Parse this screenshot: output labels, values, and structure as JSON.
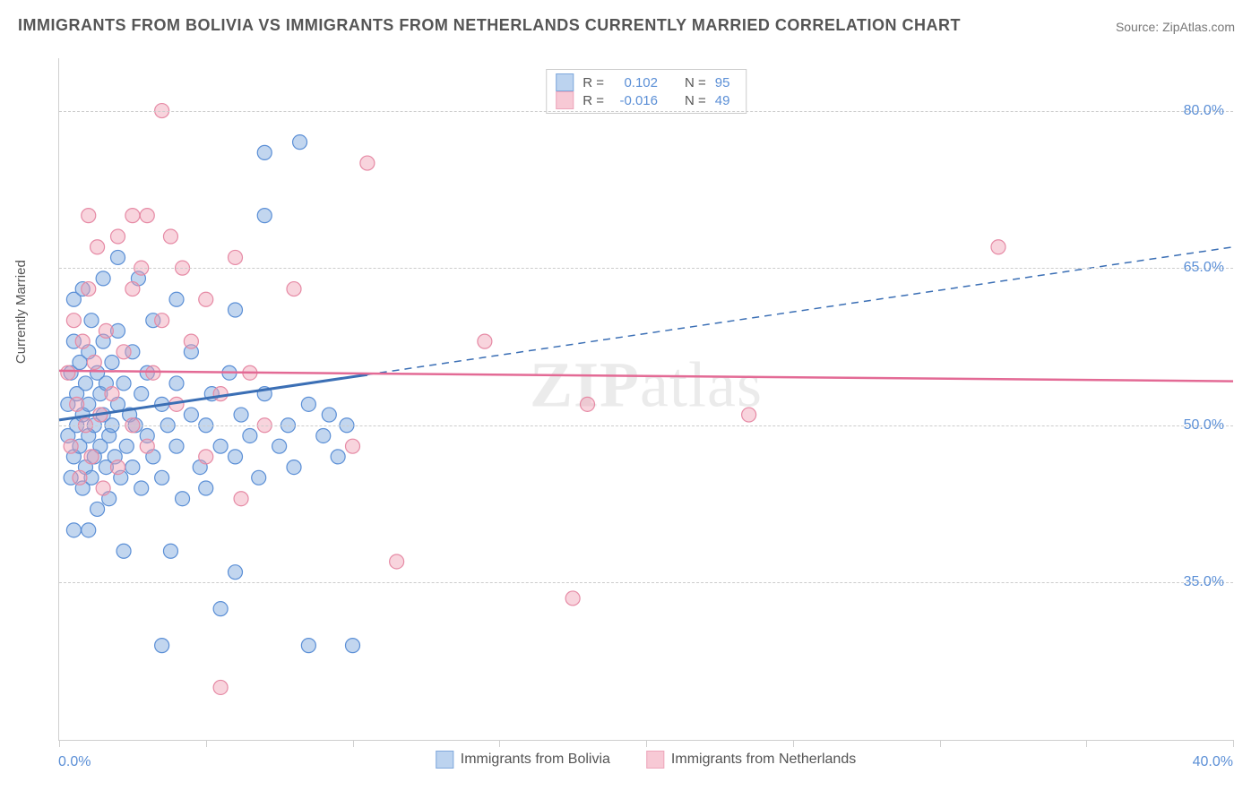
{
  "title": "IMMIGRANTS FROM BOLIVIA VS IMMIGRANTS FROM NETHERLANDS CURRENTLY MARRIED CORRELATION CHART",
  "source": "Source: ZipAtlas.com",
  "ylabel": "Currently Married",
  "watermark": "ZIPatlas",
  "chart": {
    "type": "scatter",
    "xlim": [
      0,
      40
    ],
    "ylim": [
      20,
      85
    ],
    "x_tick_labels": {
      "min": "0.0%",
      "max": "40.0%"
    },
    "x_ticks": [
      0,
      5,
      10,
      15,
      20,
      25,
      30,
      35,
      40
    ],
    "y_grid": [
      35,
      50,
      65,
      80
    ],
    "y_tick_labels": [
      "35.0%",
      "50.0%",
      "65.0%",
      "80.0%"
    ],
    "background_color": "#ffffff",
    "grid_color": "#cccccc",
    "axis_color": "#cfcfcf",
    "marker_radius": 8,
    "series": [
      {
        "name": "Immigrants from Bolivia",
        "color_fill": "rgba(120,165,220,0.45)",
        "color_stroke": "#5b8fd6",
        "swatch_fill": "#bcd3ef",
        "swatch_stroke": "#7fa8dc",
        "R": "0.102",
        "N": "95",
        "regression": {
          "y_at_xmin": 50.5,
          "y_at_xmax": 67.0,
          "solid_until_x": 10.5
        },
        "points": [
          [
            0.3,
            49
          ],
          [
            0.3,
            52
          ],
          [
            0.4,
            45
          ],
          [
            0.4,
            55
          ],
          [
            0.5,
            58
          ],
          [
            0.5,
            47
          ],
          [
            0.5,
            62
          ],
          [
            0.6,
            50
          ],
          [
            0.6,
            53
          ],
          [
            0.7,
            48
          ],
          [
            0.7,
            56
          ],
          [
            0.8,
            44
          ],
          [
            0.8,
            51
          ],
          [
            0.8,
            63
          ],
          [
            0.9,
            46
          ],
          [
            0.9,
            54
          ],
          [
            1.0,
            49
          ],
          [
            1.0,
            57
          ],
          [
            1.0,
            52
          ],
          [
            1.1,
            60
          ],
          [
            1.1,
            45
          ],
          [
            1.2,
            50
          ],
          [
            1.2,
            47
          ],
          [
            1.3,
            55
          ],
          [
            1.3,
            42
          ],
          [
            1.4,
            53
          ],
          [
            1.4,
            48
          ],
          [
            1.5,
            58
          ],
          [
            1.5,
            51
          ],
          [
            1.5,
            64
          ],
          [
            1.6,
            46
          ],
          [
            1.6,
            54
          ],
          [
            1.7,
            49
          ],
          [
            1.7,
            43
          ],
          [
            1.8,
            56
          ],
          [
            1.8,
            50
          ],
          [
            1.9,
            47
          ],
          [
            2.0,
            52
          ],
          [
            2.0,
            59
          ],
          [
            2.1,
            45
          ],
          [
            2.2,
            54
          ],
          [
            2.3,
            48
          ],
          [
            2.4,
            51
          ],
          [
            2.5,
            46
          ],
          [
            2.5,
            57
          ],
          [
            2.6,
            50
          ],
          [
            2.8,
            44
          ],
          [
            2.8,
            53
          ],
          [
            3.0,
            49
          ],
          [
            3.0,
            55
          ],
          [
            3.2,
            47
          ],
          [
            3.2,
            60
          ],
          [
            3.5,
            52
          ],
          [
            3.5,
            45
          ],
          [
            3.7,
            50
          ],
          [
            3.8,
            38
          ],
          [
            4.0,
            48
          ],
          [
            4.0,
            54
          ],
          [
            4.2,
            43
          ],
          [
            4.5,
            51
          ],
          [
            4.5,
            57
          ],
          [
            4.8,
            46
          ],
          [
            5.0,
            50
          ],
          [
            5.0,
            44
          ],
          [
            5.2,
            53
          ],
          [
            5.5,
            48
          ],
          [
            5.5,
            32.5
          ],
          [
            5.8,
            55
          ],
          [
            6.0,
            47
          ],
          [
            6.0,
            61
          ],
          [
            6.2,
            51
          ],
          [
            6.5,
            49
          ],
          [
            6.8,
            45
          ],
          [
            7.0,
            76
          ],
          [
            7.0,
            53
          ],
          [
            7.0,
            70
          ],
          [
            7.5,
            48
          ],
          [
            7.8,
            50
          ],
          [
            8.0,
            46
          ],
          [
            8.2,
            77
          ],
          [
            8.5,
            52
          ],
          [
            8.5,
            29
          ],
          [
            9.0,
            49
          ],
          [
            9.2,
            51
          ],
          [
            9.5,
            47
          ],
          [
            9.8,
            50
          ],
          [
            10.0,
            29
          ],
          [
            2.0,
            66
          ],
          [
            3.5,
            29
          ],
          [
            1.0,
            40
          ],
          [
            2.2,
            38
          ],
          [
            0.5,
            40
          ],
          [
            6.0,
            36
          ],
          [
            2.7,
            64
          ],
          [
            4.0,
            62
          ]
        ]
      },
      {
        "name": "Immigrants from Netherlands",
        "color_fill": "rgba(240,160,180,0.45)",
        "color_stroke": "#e68aa5",
        "swatch_fill": "#f7c9d5",
        "swatch_stroke": "#eda6bb",
        "R": "-0.016",
        "N": "49",
        "regression": {
          "y_at_xmin": 55.2,
          "y_at_xmax": 54.2,
          "solid_until_x": 40
        },
        "points": [
          [
            0.3,
            55
          ],
          [
            0.4,
            48
          ],
          [
            0.5,
            60
          ],
          [
            0.6,
            52
          ],
          [
            0.7,
            45
          ],
          [
            0.8,
            58
          ],
          [
            0.9,
            50
          ],
          [
            1.0,
            63
          ],
          [
            1.1,
            47
          ],
          [
            1.2,
            56
          ],
          [
            1.3,
            67
          ],
          [
            1.4,
            51
          ],
          [
            1.5,
            44
          ],
          [
            1.6,
            59
          ],
          [
            1.8,
            53
          ],
          [
            2.0,
            68
          ],
          [
            2.0,
            46
          ],
          [
            2.2,
            57
          ],
          [
            2.5,
            63
          ],
          [
            2.5,
            50
          ],
          [
            2.8,
            65
          ],
          [
            3.0,
            48
          ],
          [
            3.0,
            70
          ],
          [
            3.2,
            55
          ],
          [
            3.5,
            80
          ],
          [
            3.5,
            60
          ],
          [
            3.8,
            68
          ],
          [
            4.0,
            52
          ],
          [
            4.5,
            58
          ],
          [
            5.0,
            47
          ],
          [
            5.0,
            62
          ],
          [
            5.5,
            53
          ],
          [
            5.5,
            25
          ],
          [
            6.0,
            66
          ],
          [
            6.2,
            43
          ],
          [
            6.5,
            55
          ],
          [
            7.0,
            50
          ],
          [
            8.0,
            63
          ],
          [
            10.0,
            48
          ],
          [
            10.5,
            75
          ],
          [
            11.5,
            37
          ],
          [
            14.5,
            58
          ],
          [
            17.5,
            33.5
          ],
          [
            18.0,
            52
          ],
          [
            23.5,
            51
          ],
          [
            32.0,
            67
          ],
          [
            1.0,
            70
          ],
          [
            2.5,
            70
          ],
          [
            4.2,
            65
          ]
        ]
      }
    ]
  },
  "legend_labels": {
    "R_label": "R =",
    "N_label": "N ="
  }
}
